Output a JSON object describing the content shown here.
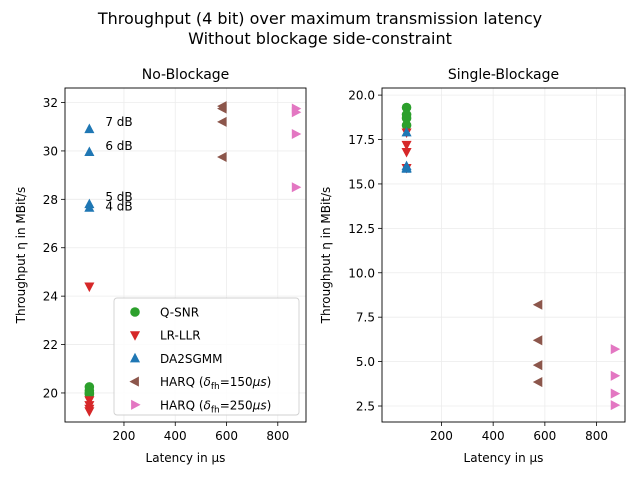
{
  "chart_data": {
    "type": "scatter",
    "title_line1": "Throughput (4 bit) over maximum transmission latency",
    "title_line2": "Without blockage side-constraint",
    "legend": [
      {
        "key": "qsnr",
        "label": "Q-SNR",
        "color": "#2ca02c",
        "marker": "circle"
      },
      {
        "key": "lrllr",
        "label": "LR-LLR",
        "color": "#d62728",
        "marker": "triangle-down"
      },
      {
        "key": "da2sgmm",
        "label": "DA2SGMM",
        "color": "#1f77b4",
        "marker": "triangle-up"
      },
      {
        "key": "harq150",
        "label_prefix": "HARQ (",
        "label_suffix": ")",
        "label_math": "δ_fh=150μs",
        "color": "#8c564b",
        "marker": "triangle-left"
      },
      {
        "key": "harq250",
        "label_prefix": "HARQ (",
        "label_suffix": ")",
        "label_math": "δ_fh=250μs",
        "color": "#e377c2",
        "marker": "triangle-right"
      }
    ],
    "subplots": [
      {
        "title": "No-Blockage",
        "xlabel": "Latency in µs",
        "ylabel": "Throughput η in MBit/s",
        "xlim": [
          -30,
          910
        ],
        "ylim": [
          18.8,
          32.6
        ],
        "xticks": [
          200,
          400,
          600,
          800
        ],
        "yticks": [
          20,
          22,
          24,
          26,
          28,
          30,
          32
        ],
        "ytick_labels": [
          "20",
          "22",
          "24",
          "26",
          "28",
          "30",
          "32"
        ],
        "series": {
          "qsnr": {
            "x": [
              65,
              65,
              65,
              65
            ],
            "y": [
              20.25,
              20.1,
              20.0,
              19.95
            ]
          },
          "lrllr": {
            "x": [
              65,
              65,
              65,
              65,
              65
            ],
            "y": [
              24.4,
              19.7,
              19.5,
              19.35,
              19.25
            ]
          },
          "da2sgmm": {
            "x": [
              65,
              65,
              65,
              65
            ],
            "y": [
              30.9,
              29.95,
              27.8,
              27.65
            ]
          },
          "harq150": {
            "x": [
              585,
              585,
              585,
              585
            ],
            "y": [
              31.85,
              31.75,
              31.2,
              29.75
            ]
          },
          "harq250": {
            "x": [
              870,
              870,
              870,
              870
            ],
            "y": [
              31.75,
              31.6,
              30.7,
              28.5
            ]
          }
        },
        "annotations": [
          {
            "text": "7 dB",
            "x": 65,
            "y": 31.2
          },
          {
            "text": "6 dB",
            "x": 65,
            "y": 30.2
          },
          {
            "text": "5 dB",
            "x": 65,
            "y": 28.1
          },
          {
            "text": "4 dB",
            "x": 65,
            "y": 27.7
          }
        ],
        "legend_position": "lower-right"
      },
      {
        "title": "Single-Blockage",
        "xlabel": "Latency in µs",
        "ylabel": "Throughput η in MBit/s",
        "xlim": [
          -30,
          910
        ],
        "ylim": [
          1.6,
          20.4
        ],
        "xticks": [
          200,
          400,
          600,
          800
        ],
        "yticks": [
          2.5,
          5.0,
          7.5,
          10.0,
          12.5,
          15.0,
          17.5,
          20.0
        ],
        "ytick_labels": [
          "2.5",
          "5.0",
          "7.5",
          "10.0",
          "12.5",
          "15.0",
          "17.5",
          "20.0"
        ],
        "series": {
          "qsnr": {
            "x": [
              65,
              65,
              65,
              65
            ],
            "y": [
              19.3,
              18.9,
              18.7,
              18.3
            ]
          },
          "lrllr": {
            "x": [
              65,
              65,
              65,
              65
            ],
            "y": [
              17.9,
              17.2,
              16.8,
              15.9
            ]
          },
          "da2sgmm": {
            "x": [
              65,
              65,
              65,
              65
            ],
            "y": [
              17.9,
              16.0,
              15.9,
              15.85
            ]
          },
          "harq150": {
            "x": [
              575,
              575,
              575,
              575
            ],
            "y": [
              8.2,
              6.2,
              4.8,
              3.85
            ]
          },
          "harq250": {
            "x": [
              870,
              870,
              870,
              870
            ],
            "y": [
              5.7,
              4.2,
              3.2,
              2.55
            ]
          }
        },
        "annotations": []
      }
    ]
  }
}
